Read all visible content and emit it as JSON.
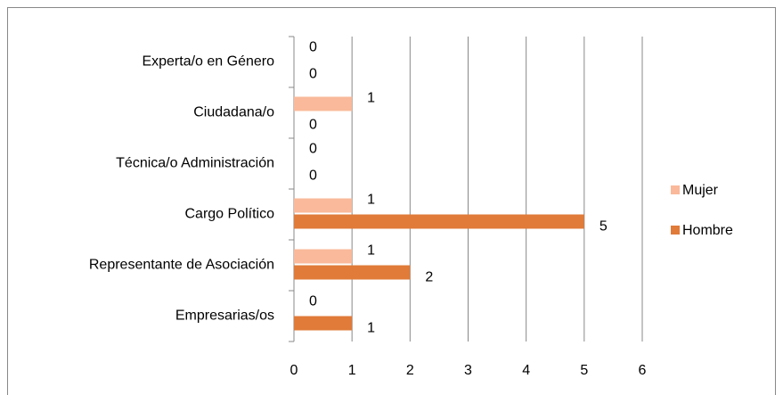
{
  "chart_data": {
    "type": "bar",
    "orientation": "horizontal",
    "categories": [
      "Experta/o en Género",
      "Ciudadana/o",
      "Técnica/o Administración",
      "Cargo Político",
      "Representante de Asociación",
      "Empresarias/os"
    ],
    "series": [
      {
        "name": "Mujer",
        "color": "#f9b99a",
        "values": [
          0,
          1,
          0,
          1,
          1,
          0
        ]
      },
      {
        "name": "Hombre",
        "color": "#e07b39",
        "values": [
          0,
          0,
          0,
          5,
          2,
          1
        ]
      }
    ],
    "xlim": [
      0,
      6
    ],
    "xticks": [
      0,
      1,
      2,
      3,
      4,
      5,
      6
    ],
    "grid": true,
    "legend": "right"
  }
}
